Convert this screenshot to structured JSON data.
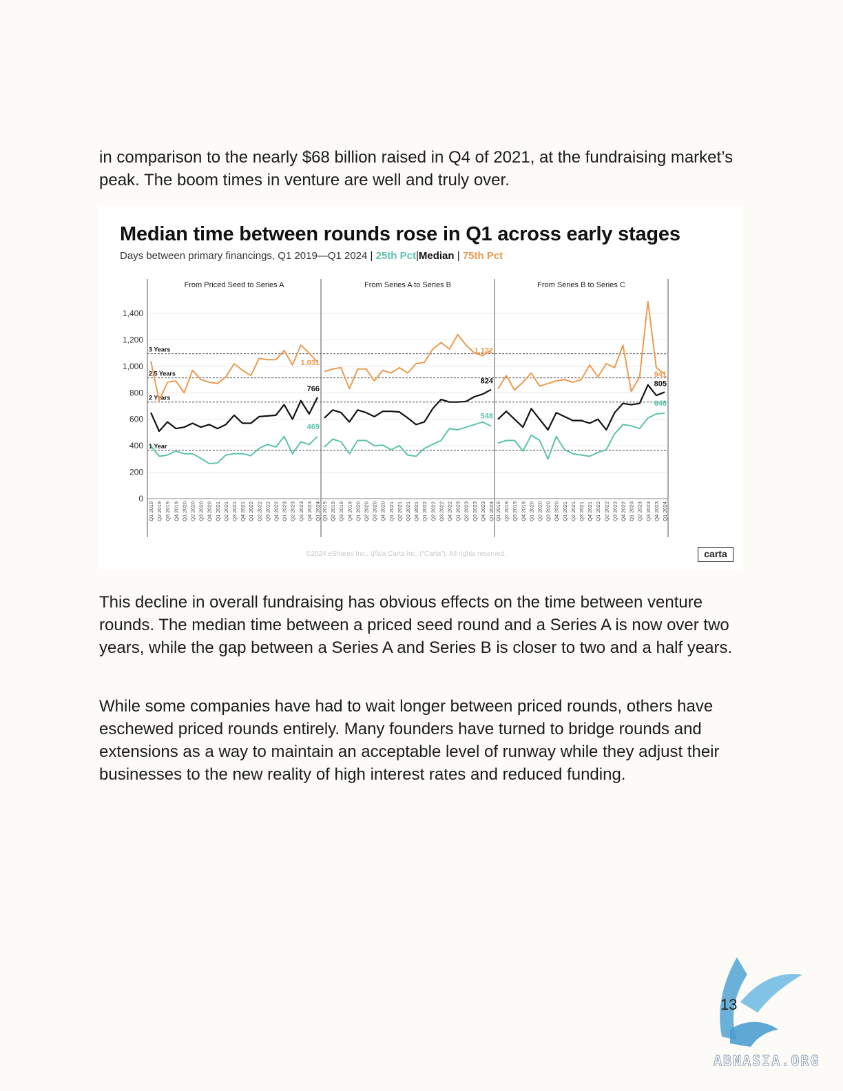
{
  "paragraphs": {
    "intro": "in comparison to the nearly $68 billion raised in Q4 of 2021, at the fundraising market’s peak. The boom times in venture are well and truly over.",
    "decline": "This decline in overall fundraising has obvious effects on the time between venture rounds. The median time between a priced seed round and a Series A is now over two years, while the gap between a Series A and Series B is closer to two and a half years.",
    "bridge": "While some companies have had to wait longer between priced rounds, others have eschewed priced rounds entirely. Many founders have turned to bridge rounds and extensions as a way to maintain an acceptable level of runway while they adjust their businesses to the new reality of high interest rates and reduced funding."
  },
  "figure": {
    "title": "Median time between rounds rose in Q1 across early stages",
    "subtitle": {
      "lead": "Days between primary financings, Q1 2019—Q1 2024",
      "sep": "|",
      "p25": "25th Pct",
      "median": "Median",
      "p75": "75th Pct"
    },
    "copyright": "©2024 eShares Inc., d/b/a Carta Inc. (“Carta”). All rights reserved.",
    "logo": "carta"
  },
  "page_number": "13",
  "watermark": "ABNASIA.ORG",
  "chart_data": {
    "type": "line",
    "ylim": [
      0,
      1400
    ],
    "y_ticks": [
      0,
      200,
      400,
      600,
      800,
      1000,
      1200,
      1400
    ],
    "y_tick_labels": [
      "0",
      "200",
      "400",
      "600",
      "800",
      "1,000",
      "1,200",
      "1,400"
    ],
    "grid": true,
    "colors": {
      "p25": "#5cc3ab",
      "median": "#111111",
      "p75": "#ee9a4f"
    },
    "x": [
      "Q1 2019",
      "Q2 2019",
      "Q3 2019",
      "Q4 2019",
      "Q1 2020",
      "Q2 2020",
      "Q3 2020",
      "Q4 2020",
      "Q1 2021",
      "Q2 2021",
      "Q3 2021",
      "Q4 2021",
      "Q1 2022",
      "Q2 2022",
      "Q3 2022",
      "Q4 2022",
      "Q1 2023",
      "Q2 2023",
      "Q3 2023",
      "Q4 2023",
      "Q1 2024"
    ],
    "reference_lines": [
      {
        "label": "3 Years",
        "value": 1095
      },
      {
        "label": "2.5 Years",
        "value": 913
      },
      {
        "label": "2 Years",
        "value": 730
      },
      {
        "label": "1 Year",
        "value": 365
      }
    ],
    "panels": [
      {
        "title": "From Priced Seed to Series A",
        "series": [
          {
            "key": "p75",
            "values": [
              1040,
              740,
              880,
              890,
              800,
              970,
              900,
              880,
              870,
              920,
              1020,
              970,
              930,
              1060,
              1050,
              1050,
              1120,
              1010,
              1160,
              1100,
              1031
            ]
          },
          {
            "key": "median",
            "values": [
              650,
              510,
              580,
              530,
              540,
              570,
              540,
              560,
              530,
              560,
              630,
              570,
              570,
              620,
              625,
              630,
              710,
              600,
              740,
              640,
              766
            ]
          },
          {
            "key": "p25",
            "values": [
              400,
              320,
              330,
              360,
              340,
              340,
              305,
              265,
              270,
              330,
              340,
              340,
              325,
              380,
              410,
              390,
              470,
              340,
              430,
              410,
              469
            ]
          }
        ],
        "end_labels": {
          "p75": "1,031",
          "median": "766",
          "p25": "469"
        }
      },
      {
        "title": "From Series A to Series B",
        "series": [
          {
            "key": "p75",
            "values": [
              960,
              980,
              990,
              830,
              980,
              980,
              890,
              970,
              950,
              990,
              950,
              1020,
              1030,
              1130,
              1180,
              1130,
              1240,
              1160,
              1100,
              1080,
              1122
            ]
          },
          {
            "key": "median",
            "values": [
              610,
              670,
              650,
              580,
              670,
              650,
              620,
              660,
              660,
              655,
              610,
              560,
              580,
              680,
              750,
              730,
              730,
              735,
              770,
              790,
              824
            ]
          },
          {
            "key": "p25",
            "values": [
              390,
              450,
              430,
              340,
              440,
              440,
              400,
              405,
              370,
              400,
              330,
              320,
              380,
              410,
              440,
              530,
              520,
              540,
              560,
              580,
              548
            ]
          }
        ],
        "end_labels": {
          "p75": "1,122",
          "median": "824",
          "p25": "548"
        }
      },
      {
        "title": "From Series B to Series C",
        "series": [
          {
            "key": "p75",
            "values": [
              830,
              930,
              820,
              880,
              950,
              850,
              870,
              890,
              900,
              880,
              900,
              1010,
              920,
              1020,
              990,
              1160,
              810,
              920,
              1490,
              990,
              941
            ]
          },
          {
            "key": "median",
            "values": [
              600,
              660,
              600,
              540,
              680,
              600,
              520,
              650,
              620,
              590,
              590,
              570,
              600,
              520,
              650,
              720,
              710,
              720,
              860,
              780,
              805
            ]
          },
          {
            "key": "p25",
            "values": [
              420,
              440,
              440,
              360,
              480,
              440,
              300,
              470,
              370,
              340,
              330,
              320,
              350,
              370,
              490,
              560,
              550,
              530,
              610,
              640,
              646
            ]
          }
        ],
        "end_labels": {
          "p75": "941",
          "median": "805",
          "p25": "646"
        }
      }
    ]
  }
}
